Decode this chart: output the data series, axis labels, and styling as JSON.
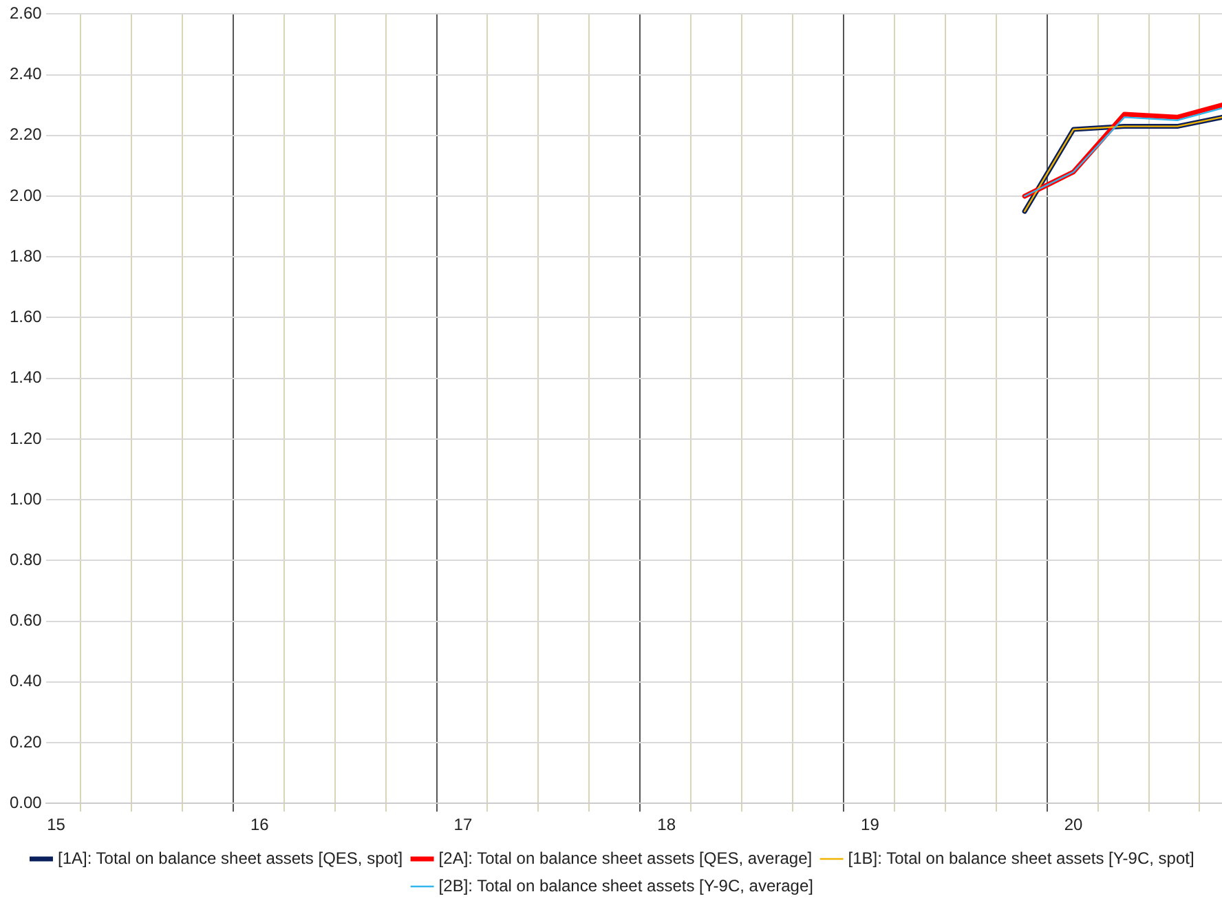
{
  "chart_data": {
    "type": "line",
    "xlim": [
      14.95,
      20.73
    ],
    "xticks": [
      15,
      {
        "value": 15.12,
        "label": null
      },
      {
        "value": 15.37,
        "label": null
      },
      {
        "value": 15.62,
        "label": null
      },
      {
        "value": 15.87,
        "label": null
      },
      16,
      {
        "value": 16.12,
        "label": null
      },
      {
        "value": 16.37,
        "label": null
      },
      {
        "value": 16.62,
        "label": null
      },
      {
        "value": 16.87,
        "label": null
      },
      17,
      {
        "value": 17.12,
        "label": null
      },
      {
        "value": 17.37,
        "label": null
      },
      {
        "value": 17.62,
        "label": null
      },
      {
        "value": 17.87,
        "label": null
      },
      18,
      {
        "value": 18.12,
        "label": null
      },
      {
        "value": 18.37,
        "label": null
      },
      {
        "value": 18.62,
        "label": null
      },
      {
        "value": 18.87,
        "label": null
      },
      19,
      {
        "value": 19.12,
        "label": null
      },
      {
        "value": 19.37,
        "label": null
      },
      {
        "value": 19.62,
        "label": null
      },
      {
        "value": 19.87,
        "label": null
      },
      20,
      {
        "value": 20.12,
        "label": null
      },
      {
        "value": 20.37,
        "label": null
      },
      {
        "value": 20.62,
        "label": null
      }
    ],
    "ylim": [
      0,
      2.6
    ],
    "yticks": [
      {
        "value": 0,
        "label": "0.00"
      },
      {
        "value": 0.2,
        "label": "0.20"
      },
      {
        "value": 0.4,
        "label": "0.40"
      },
      {
        "value": 0.6,
        "label": "0.60"
      },
      {
        "value": 0.8,
        "label": "0.80"
      },
      {
        "value": 1,
        "label": "1.00"
      },
      {
        "value": 1.2,
        "label": "1.20"
      },
      {
        "value": 1.4,
        "label": "1.40"
      },
      {
        "value": 1.6,
        "label": "1.60"
      },
      {
        "value": 1.8,
        "label": "1.80"
      },
      {
        "value": 2,
        "label": "2.00"
      },
      {
        "value": 2.2,
        "label": "2.20"
      },
      {
        "value": 2.4,
        "label": "2.40"
      },
      {
        "value": 2.6,
        "label": "2.60"
      }
    ],
    "x": [
      19.76,
      20.0,
      20.25,
      20.51,
      20.73
    ],
    "series": [
      {
        "name": "[1A]: Total on balance sheet assets [QES, spot]",
        "color": "#0a1f5c",
        "values": [
          1.95,
          2.22,
          2.23,
          2.23,
          2.26
        ]
      },
      {
        "name": "[2A]: Total on balance sheet assets [QES, average]",
        "color": "#ff0000",
        "values": [
          2.0,
          2.08,
          2.27,
          2.26,
          2.3
        ]
      },
      {
        "name": "[1B]: Total on balance sheet assets [Y-9C, spot]",
        "color": "#f0b400",
        "values": [
          1.95,
          2.22,
          2.23,
          2.23,
          2.26
        ]
      },
      {
        "name": "[2B]: Total on balance sheet assets [Y-9C, average]",
        "color": "#33b5ee",
        "values": [
          2.0,
          2.08,
          2.26,
          2.25,
          2.29
        ]
      }
    ],
    "grid": true,
    "legend": "bottom",
    "marker": "none",
    "line_style": "solid"
  }
}
